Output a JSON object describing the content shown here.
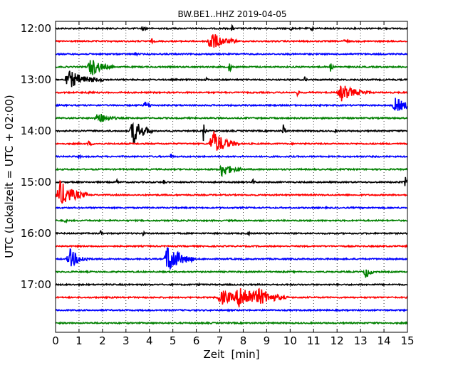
{
  "chart_data": {
    "type": "line",
    "title": "BW.BE1..HHZ 2019-04-05",
    "xlabel": "Zeit  [min]",
    "ylabel": "UTC (Lokalzeit = UTC + 02:00)",
    "xlim": [
      0,
      15
    ],
    "x_ticks": [
      0,
      1,
      2,
      3,
      4,
      5,
      6,
      7,
      8,
      9,
      10,
      11,
      12,
      13,
      14,
      15
    ],
    "y_ticks": [
      {
        "label": "12:00",
        "trace": 0
      },
      {
        "label": "13:00",
        "trace": 4
      },
      {
        "label": "14:00",
        "trace": 8
      },
      {
        "label": "15:00",
        "trace": 12
      },
      {
        "label": "16:00",
        "trace": 16
      },
      {
        "label": "17:00",
        "trace": 20
      }
    ],
    "grid": {
      "vertical_dotted": true
    },
    "trace_colors": [
      "#000000",
      "#ff0000",
      "#0000ff",
      "#008000"
    ],
    "traces": [
      {
        "start": "12:00",
        "color": "#000000",
        "events": [
          {
            "t": 3.7,
            "amp": 0.3,
            "dur": 0.1
          },
          {
            "t": 7.5,
            "amp": 0.5,
            "dur": 0.05
          },
          {
            "t": 10.0,
            "amp": 0.4,
            "dur": 0.05
          },
          {
            "t": 10.9,
            "amp": 0.3,
            "dur": 0.05
          }
        ]
      },
      {
        "start": "12:15",
        "color": "#ff0000",
        "events": [
          {
            "t": 6.6,
            "amp": 1.2,
            "dur": 0.45
          },
          {
            "t": 4.1,
            "amp": 0.3,
            "dur": 0.05
          },
          {
            "t": 12.3,
            "amp": 0.2,
            "dur": 0.1
          }
        ]
      },
      {
        "start": "12:30",
        "color": "#0000ff",
        "events": [
          {
            "t": 3.4,
            "amp": 0.4,
            "dur": 0.05
          }
        ]
      },
      {
        "start": "12:45",
        "color": "#008000",
        "events": [
          {
            "t": 1.5,
            "amp": 1.1,
            "dur": 0.4
          },
          {
            "t": 7.4,
            "amp": 1.2,
            "dur": 0.06
          },
          {
            "t": 11.7,
            "amp": 0.8,
            "dur": 0.06
          }
        ]
      },
      {
        "start": "13:00",
        "color": "#000000",
        "events": [
          {
            "t": 0.6,
            "amp": 1.0,
            "dur": 0.6
          },
          {
            "t": 6.4,
            "amp": 0.3,
            "dur": 0.05
          },
          {
            "t": 10.6,
            "amp": 0.5,
            "dur": 0.05
          }
        ]
      },
      {
        "start": "13:15",
        "color": "#ff0000",
        "events": [
          {
            "t": 12.2,
            "amp": 1.0,
            "dur": 0.5
          },
          {
            "t": 10.3,
            "amp": 0.4,
            "dur": 0.05
          },
          {
            "t": 1.4,
            "amp": 0.2,
            "dur": 0.1
          }
        ]
      },
      {
        "start": "13:30",
        "color": "#0000ff",
        "events": [
          {
            "t": 14.5,
            "amp": 0.9,
            "dur": 0.4
          },
          {
            "t": 3.8,
            "amp": 0.4,
            "dur": 0.15
          }
        ]
      },
      {
        "start": "13:45",
        "color": "#008000",
        "events": [
          {
            "t": 1.8,
            "amp": 0.7,
            "dur": 0.35
          }
        ]
      },
      {
        "start": "14:00",
        "color": "#000000",
        "events": [
          {
            "t": 3.3,
            "amp": 1.7,
            "dur": 0.35
          },
          {
            "t": 6.3,
            "amp": 1.2,
            "dur": 0.06
          },
          {
            "t": 9.7,
            "amp": 1.1,
            "dur": 0.06
          },
          {
            "t": 11.9,
            "amp": 0.3,
            "dur": 0.05
          }
        ]
      },
      {
        "start": "14:15",
        "color": "#ff0000",
        "events": [
          {
            "t": 6.7,
            "amp": 1.6,
            "dur": 0.45
          },
          {
            "t": 1.4,
            "amp": 0.3,
            "dur": 0.1
          }
        ]
      },
      {
        "start": "14:30",
        "color": "#0000ff",
        "events": [
          {
            "t": 1.0,
            "amp": 0.3,
            "dur": 0.05
          },
          {
            "t": 4.9,
            "amp": 0.3,
            "dur": 0.05
          }
        ]
      },
      {
        "start": "14:45",
        "color": "#008000",
        "events": [
          {
            "t": 7.1,
            "amp": 0.9,
            "dur": 0.35
          }
        ]
      },
      {
        "start": "15:00",
        "color": "#000000",
        "events": [
          {
            "t": 2.6,
            "amp": 0.4,
            "dur": 0.05
          },
          {
            "t": 4.6,
            "amp": 0.4,
            "dur": 0.05
          },
          {
            "t": 8.4,
            "amp": 0.4,
            "dur": 0.05
          },
          {
            "t": 14.9,
            "amp": 0.6,
            "dur": 0.15
          }
        ]
      },
      {
        "start": "15:15",
        "color": "#ff0000",
        "events": [
          {
            "t": 0.2,
            "amp": 1.6,
            "dur": 0.5
          }
        ]
      },
      {
        "start": "15:30",
        "color": "#0000ff",
        "events": []
      },
      {
        "start": "15:45",
        "color": "#008000",
        "events": [
          {
            "t": 0.4,
            "amp": 0.3,
            "dur": 0.05
          }
        ]
      },
      {
        "start": "16:00",
        "color": "#000000",
        "events": [
          {
            "t": 1.9,
            "amp": 0.4,
            "dur": 0.05
          },
          {
            "t": 3.7,
            "amp": 0.4,
            "dur": 0.05
          },
          {
            "t": 8.2,
            "amp": 0.5,
            "dur": 0.05
          }
        ]
      },
      {
        "start": "16:15",
        "color": "#ff0000",
        "events": []
      },
      {
        "start": "16:30",
        "color": "#0000ff",
        "events": [
          {
            "t": 0.6,
            "amp": 1.2,
            "dur": 0.35
          },
          {
            "t": 4.8,
            "amp": 1.9,
            "dur": 0.45
          }
        ]
      },
      {
        "start": "16:45",
        "color": "#008000",
        "events": [
          {
            "t": 13.2,
            "amp": 0.9,
            "dur": 0.15
          }
        ]
      },
      {
        "start": "17:00",
        "color": "#000000",
        "events": [
          {
            "t": 6.1,
            "amp": 0.2,
            "dur": 0.05
          }
        ]
      },
      {
        "start": "17:15",
        "color": "#ff0000",
        "events": [
          {
            "t": 7.1,
            "amp": 0.8,
            "dur": 0.6
          },
          {
            "t": 7.9,
            "amp": 1.3,
            "dur": 0.7
          },
          {
            "t": 8.7,
            "amp": 0.6,
            "dur": 0.5
          }
        ]
      },
      {
        "start": "17:30",
        "color": "#0000ff",
        "events": []
      },
      {
        "start": "17:45",
        "color": "#008000",
        "events": []
      }
    ]
  }
}
